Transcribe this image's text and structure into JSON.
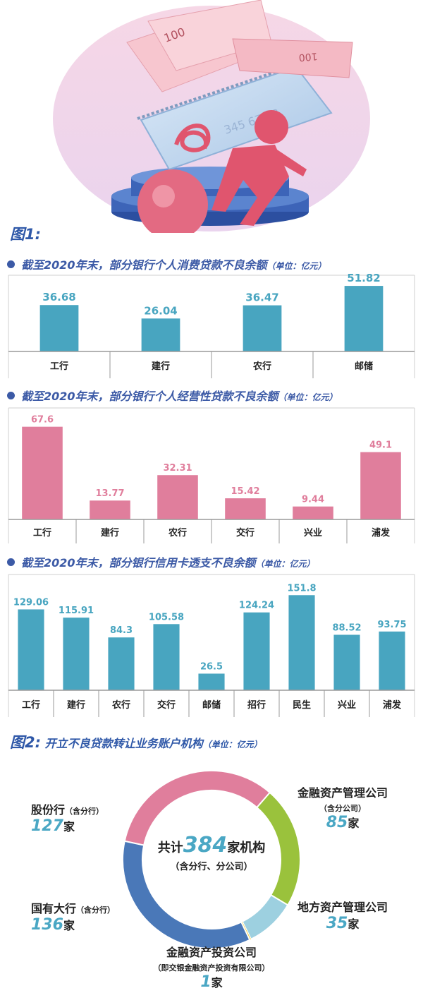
{
  "colors": {
    "accent_blue": "#2f58a8",
    "bar_teal": "#48a5c0",
    "bar_pink": "#e07e9c",
    "donut_pink": "#e07e9c",
    "donut_green": "#9ac23c",
    "donut_lightblue": "#9dd0e0",
    "donut_yellow": "#f1c40f",
    "donut_blue": "#4a78b8"
  },
  "figure1": {
    "label": "图1:"
  },
  "sections": [
    {
      "title": "截至2020年末，部分银行个人消费贷款不良余额",
      "unit": "（单位：亿元）"
    },
    {
      "title": "截至2020年末，部分银行个人经营性贷款不良余额",
      "unit": "（单位：亿元）"
    },
    {
      "title": "截至2020年末，部分银行信用卡透支不良余额",
      "unit": "（单位：亿元）"
    }
  ],
  "chart_data": [
    {
      "type": "bar",
      "title": "截至2020年末，部分银行个人消费贷款不良余额",
      "unit": "单位：亿元",
      "categories": [
        "工行",
        "建行",
        "农行",
        "邮储"
      ],
      "values": [
        36.68,
        26.04,
        36.47,
        51.82
      ],
      "value_labels": [
        "36.68",
        "26.04",
        "36.47",
        "51.82"
      ],
      "ylim": [
        0,
        58
      ],
      "color": "#48a5c0"
    },
    {
      "type": "bar",
      "title": "截至2020年末，部分银行个人经营性贷款不良余额",
      "unit": "单位：亿元",
      "categories": [
        "工行",
        "建行",
        "农行",
        "交行",
        "兴业",
        "浦发"
      ],
      "values": [
        67.6,
        13.77,
        32.31,
        15.42,
        9.44,
        49.1
      ],
      "value_labels": [
        "67.6",
        "13.77",
        "32.31",
        "15.42",
        "9.44",
        "49.1"
      ],
      "ylim": [
        0,
        70
      ],
      "color": "#e07e9c"
    },
    {
      "type": "bar",
      "title": "截至2020年末，部分银行信用卡透支不良余额",
      "unit": "单位：亿元",
      "categories": [
        "工行",
        "建行",
        "农行",
        "交行",
        "邮储",
        "招行",
        "民生",
        "兴业",
        "浦发"
      ],
      "values": [
        129.06,
        115.91,
        84.3,
        105.58,
        26.5,
        124.24,
        151.8,
        88.52,
        93.75
      ],
      "value_labels": [
        "129.06",
        "115.91",
        "84.3",
        "105.58",
        "26.5",
        "124.24",
        "151.8",
        "88.52",
        "93.75"
      ],
      "ylim": [
        0,
        160
      ],
      "color": "#48a5c0"
    },
    {
      "type": "pie",
      "title": "开立不良贷款转让业务账户机构",
      "unit": "单位：亿元",
      "slices": [
        {
          "name": "股份行",
          "note": "（含分行）",
          "value": 127,
          "color": "#e07e9c"
        },
        {
          "name": "金融资产管理公司",
          "note": "（含分公司）",
          "value": 85,
          "color": "#9ac23c"
        },
        {
          "name": "地方资产管理公司",
          "note": "",
          "value": 35,
          "color": "#9dd0e0"
        },
        {
          "name": "金融资产投资公司",
          "note": "（即交银金融资产投资有限公司）",
          "value": 1,
          "color": "#f1c40f"
        },
        {
          "name": "国有大行",
          "note": "（含分行）",
          "value": 136,
          "color": "#4a78b8"
        }
      ],
      "total": 384
    }
  ],
  "figure2": {
    "label": "图2:",
    "title": "开立不良贷款转让业务账户机构",
    "unit": "（单位：亿元）",
    "center_prefix": "共计",
    "center_total": "384",
    "center_suffix": "家机构",
    "center_note": "（含分行、分公司）",
    "unit_jia": "家",
    "labels": {
      "gufen": {
        "name": "股份行",
        "note": "（含分行）",
        "num": "127"
      },
      "amc": {
        "name": "金融资产管理公司",
        "note": "（含分公司）",
        "num": "85"
      },
      "local": {
        "name": "地方资产管理公司",
        "num": "35"
      },
      "invest": {
        "name": "金融资产投资公司",
        "note": "（即交银金融资产投资有限公司）",
        "num": "1"
      },
      "guoyou": {
        "name": "国有大行",
        "note": "（含分行）",
        "num": "136"
      }
    }
  },
  "hero": {
    "banknote_text": "100",
    "card_digits": "345 67 38"
  }
}
